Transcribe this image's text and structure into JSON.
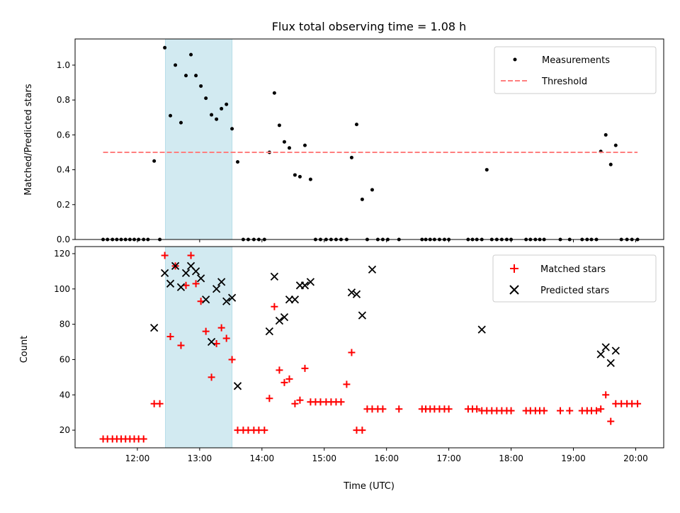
{
  "chart_data": [
    {
      "type": "scatter",
      "title": "Flux total observing time = 1.08 h",
      "ylabel": "Matched/Predicted stars",
      "xlabel": "",
      "xlim": [
        11.0,
        20.45
      ],
      "ylim": [
        0,
        1.15
      ],
      "yticks": [
        0.0,
        0.2,
        0.4,
        0.6,
        0.8,
        1.0
      ],
      "ytick_labels": [
        "0.0",
        "0.2",
        "0.4",
        "0.6",
        "0.8",
        "1.0"
      ],
      "shaded_span": [
        12.45,
        13.52
      ],
      "shade_color": "#add8e6",
      "legend_position": "top-right",
      "legend_entries": [
        "Measurements",
        "Threshold"
      ],
      "series": [
        {
          "name": "Measurements",
          "marker": "dot",
          "color": "#000000",
          "x": [
            11.45,
            11.52,
            11.6,
            11.67,
            11.74,
            11.81,
            11.88,
            11.95,
            12.02,
            12.1,
            12.17,
            12.27,
            12.36,
            12.44,
            12.53,
            12.61,
            12.7,
            12.78,
            12.86,
            12.94,
            13.02,
            13.1,
            13.19,
            13.27,
            13.35,
            13.43,
            13.52,
            13.61,
            13.7,
            13.78,
            13.87,
            13.95,
            14.04,
            14.12,
            14.2,
            14.28,
            14.36,
            14.44,
            14.53,
            14.61,
            14.69,
            14.78,
            14.86,
            14.94,
            15.03,
            15.11,
            15.19,
            15.27,
            15.36,
            15.44,
            15.52,
            15.61,
            15.69,
            15.77,
            15.86,
            15.94,
            16.02,
            16.2,
            16.57,
            16.63,
            16.7,
            16.77,
            16.85,
            16.93,
            17.0,
            17.31,
            17.38,
            17.45,
            17.53,
            17.61,
            17.69,
            17.77,
            17.85,
            17.93,
            18.0,
            18.24,
            18.31,
            18.39,
            18.46,
            18.53,
            18.79,
            18.94,
            19.14,
            19.22,
            19.29,
            19.37,
            19.44,
            19.52,
            19.6,
            19.68,
            19.77,
            19.86,
            19.94,
            20.03
          ],
          "y": [
            0,
            0,
            0,
            0,
            0,
            0,
            0,
            0,
            0,
            0,
            0,
            0.45,
            0,
            1.1,
            0.71,
            1.0,
            0.67,
            0.94,
            1.06,
            0.94,
            0.88,
            0.81,
            0.715,
            0.69,
            0.75,
            0.775,
            0.635,
            0.445,
            0,
            0,
            0,
            0,
            0,
            0.5,
            0.84,
            0.655,
            0.56,
            0.525,
            0.37,
            0.36,
            0.54,
            0.345,
            0,
            0,
            0,
            0,
            0,
            0,
            0,
            0.47,
            0.66,
            0.23,
            0,
            0.285,
            0,
            0,
            0,
            0,
            0,
            0,
            0,
            0,
            0,
            0,
            0,
            0,
            0,
            0,
            0,
            0.4,
            0,
            0,
            0,
            0,
            0,
            0,
            0,
            0,
            0,
            0,
            0,
            0,
            0,
            0,
            0,
            0,
            0.505,
            0.6,
            0.43,
            0.54,
            0,
            0,
            0,
            0
          ]
        },
        {
          "name": "Threshold",
          "style": "dashed",
          "color": "#ff7f7f",
          "x": [
            11.45,
            20.03
          ],
          "y": [
            0.5,
            0.5
          ]
        }
      ]
    },
    {
      "type": "scatter",
      "title": "",
      "xlabel": "Time (UTC)",
      "ylabel": "Count",
      "xlim": [
        11.0,
        20.45
      ],
      "ylim": [
        10,
        124
      ],
      "yticks": [
        20,
        40,
        60,
        80,
        100,
        120
      ],
      "ytick_labels": [
        "20",
        "40",
        "60",
        "80",
        "100",
        "120"
      ],
      "xticks": [
        12,
        13,
        14,
        15,
        16,
        17,
        18,
        19,
        20
      ],
      "xtick_labels": [
        "12:00",
        "13:00",
        "14:00",
        "15:00",
        "16:00",
        "17:00",
        "18:00",
        "19:00",
        "20:00"
      ],
      "shaded_span": [
        12.45,
        13.52
      ],
      "shade_color": "#add8e6",
      "legend_position": "top-right",
      "legend_entries": [
        "Matched stars",
        "Predicted stars"
      ],
      "series": [
        {
          "name": "Matched stars",
          "marker": "plus",
          "color": "#ff0000",
          "x": [
            11.45,
            11.52,
            11.6,
            11.67,
            11.74,
            11.81,
            11.88,
            11.95,
            12.02,
            12.1,
            12.27,
            12.36,
            12.44,
            12.53,
            12.61,
            12.7,
            12.78,
            12.86,
            12.94,
            13.02,
            13.1,
            13.19,
            13.27,
            13.35,
            13.43,
            13.52,
            13.61,
            13.7,
            13.78,
            13.87,
            13.95,
            14.04,
            14.12,
            14.2,
            14.28,
            14.36,
            14.44,
            14.53,
            14.61,
            14.69,
            14.78,
            14.86,
            14.94,
            15.03,
            15.11,
            15.19,
            15.27,
            15.36,
            15.44,
            15.52,
            15.61,
            15.69,
            15.77,
            15.86,
            15.94,
            16.2,
            16.57,
            16.63,
            16.7,
            16.77,
            16.85,
            16.93,
            17.0,
            17.31,
            17.38,
            17.45,
            17.53,
            17.61,
            17.69,
            17.77,
            17.85,
            17.93,
            18.0,
            18.24,
            18.31,
            18.39,
            18.46,
            18.53,
            18.79,
            18.94,
            19.14,
            19.22,
            19.29,
            19.37,
            19.44,
            19.52,
            19.6,
            19.68,
            19.77,
            19.86,
            19.94,
            20.03
          ],
          "y": [
            15,
            15,
            15,
            15,
            15,
            15,
            15,
            15,
            15,
            15,
            35,
            35,
            119,
            73,
            113,
            68,
            102,
            119,
            103,
            93,
            76,
            50,
            69,
            78,
            72,
            60,
            20,
            20,
            20,
            20,
            20,
            20,
            38,
            90,
            54,
            47,
            49,
            35,
            37,
            55,
            36,
            36,
            36,
            36,
            36,
            36,
            36,
            46,
            64,
            20,
            20,
            32,
            32,
            32,
            32,
            32,
            32,
            32,
            32,
            32,
            32,
            32,
            32,
            32,
            32,
            32,
            31,
            31,
            31,
            31,
            31,
            31,
            31,
            31,
            31,
            31,
            31,
            31,
            31,
            31,
            31,
            31,
            31,
            31,
            32,
            40,
            25,
            35,
            35,
            35,
            35,
            35
          ]
        },
        {
          "name": "Predicted stars",
          "marker": "x",
          "color": "#000000",
          "x": [
            12.27,
            12.44,
            12.53,
            12.61,
            12.7,
            12.78,
            12.86,
            12.94,
            13.02,
            13.1,
            13.19,
            13.27,
            13.35,
            13.43,
            13.52,
            13.61,
            14.12,
            14.2,
            14.28,
            14.36,
            14.44,
            14.53,
            14.61,
            14.69,
            14.78,
            15.44,
            15.52,
            15.61,
            15.77,
            17.53,
            19.44,
            19.52,
            19.6,
            19.68
          ],
          "y": [
            78,
            109,
            103,
            113,
            101,
            109,
            113,
            110,
            106,
            94,
            70,
            100,
            104,
            93,
            95,
            45,
            76,
            107,
            82,
            84,
            94,
            94,
            102,
            102,
            104,
            98,
            97,
            85,
            111,
            77,
            63,
            67,
            58,
            65
          ]
        }
      ]
    }
  ]
}
